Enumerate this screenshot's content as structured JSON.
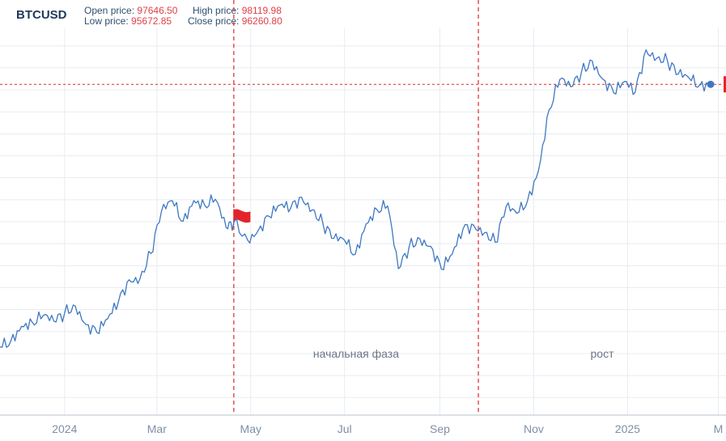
{
  "header": {
    "symbol": "BTCUSD",
    "open_label": "Open price:",
    "open_value": "97646.50",
    "high_label": "High price:",
    "high_value": "98119.98",
    "low_label": "Low price:",
    "low_value": "95672.85",
    "close_label": "Close price:",
    "close_value": "96260.80"
  },
  "colors": {
    "line": "#3e78c2",
    "marker": "#e3242b",
    "grid": "#e8ecf1",
    "axis": "#b9c3cf"
  },
  "chart_data": {
    "type": "line",
    "title": "BTCUSD",
    "grid": true,
    "x_range": [
      "2023-11-20",
      "2025-03-06"
    ],
    "ylim": [
      21000,
      109000
    ],
    "x_ticks": [
      {
        "date": "2024-01-01",
        "label": "2024"
      },
      {
        "date": "2024-03-01",
        "label": "Mar"
      },
      {
        "date": "2024-05-01",
        "label": "May"
      },
      {
        "date": "2024-07-01",
        "label": "Jul"
      },
      {
        "date": "2024-09-01",
        "label": "Sep"
      },
      {
        "date": "2024-11-01",
        "label": "Nov"
      },
      {
        "date": "2025-01-01",
        "label": "2025"
      },
      {
        "date": "2025-03-01",
        "label": "M"
      }
    ],
    "current_price": 96260.8,
    "phase_markers": [
      {
        "date": "2024-04-20",
        "label": "начальная фаза",
        "flag": true
      },
      {
        "date": "2024-09-26",
        "label": "рост",
        "flag": false
      }
    ],
    "series": [
      {
        "x": [
          "2023-11-20",
          "2023-11-27",
          "2023-12-04",
          "2023-12-11",
          "2023-12-18",
          "2023-12-25",
          "2024-01-01",
          "2024-01-08",
          "2024-01-15",
          "2024-01-22",
          "2024-01-29",
          "2024-02-05",
          "2024-02-12",
          "2024-02-19",
          "2024-02-26",
          "2024-03-04",
          "2024-03-11",
          "2024-03-18",
          "2024-03-25",
          "2024-04-01",
          "2024-04-08",
          "2024-04-15",
          "2024-04-20",
          "2024-04-29",
          "2024-05-06",
          "2024-05-13",
          "2024-05-20",
          "2024-05-27",
          "2024-06-03",
          "2024-06-10",
          "2024-06-17",
          "2024-06-24",
          "2024-07-01",
          "2024-07-08",
          "2024-07-15",
          "2024-07-22",
          "2024-07-29",
          "2024-08-05",
          "2024-08-12",
          "2024-08-19",
          "2024-08-26",
          "2024-09-02",
          "2024-09-09",
          "2024-09-16",
          "2024-09-23",
          "2024-09-30",
          "2024-10-07",
          "2024-10-14",
          "2024-10-21",
          "2024-10-28",
          "2024-11-04",
          "2024-11-11",
          "2024-11-18",
          "2024-11-25",
          "2024-12-02",
          "2024-12-09",
          "2024-12-16",
          "2024-12-23",
          "2024-12-30",
          "2025-01-06",
          "2025-01-13",
          "2025-01-20",
          "2025-01-27",
          "2025-02-03",
          "2025-02-10",
          "2025-02-17",
          "2025-02-24"
        ],
        "values": [
          36500,
          37800,
          41200,
          42100,
          43600,
          42400,
          44200,
          45800,
          41600,
          39800,
          42900,
          46800,
          51800,
          52000,
          57800,
          67400,
          69800,
          65100,
          69800,
          68800,
          70100,
          63700,
          64900,
          60800,
          63100,
          66200,
          68800,
          68100,
          70600,
          67700,
          64500,
          61200,
          60800,
          57600,
          64500,
          67800,
          68600,
          54300,
          59300,
          61100,
          59400,
          54200,
          57600,
          63300,
          64200,
          62500,
          60300,
          68400,
          66900,
          69800,
          76500,
          90500,
          97400,
          95700,
          99000,
          101600,
          97400,
          94300,
          96900,
          94500,
          104100,
          102200,
          101500,
          98600,
          97700,
          96100,
          96260.8
        ]
      }
    ]
  }
}
